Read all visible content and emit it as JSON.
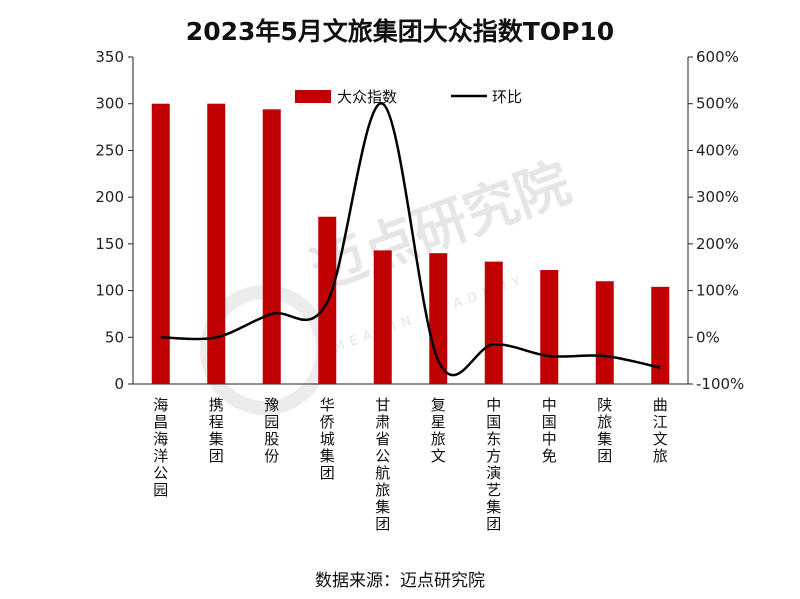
{
  "watermark": {
    "text": "迈点研究院",
    "subtext": "MEADIN ACADEMY"
  },
  "source": "数据来源：迈点研究院",
  "colors": {
    "bar": "#c00000",
    "line": "#000000",
    "axis": "#222222"
  },
  "chart_data": {
    "type": "bar",
    "title": "2023年5月文旅集团大众指数TOP10",
    "categories": [
      "海昌海洋公园",
      "携程集团",
      "豫园股份",
      "华侨城集团",
      "甘肃省公航旅集团",
      "复星旅文",
      "中国东方演艺集团",
      "中国中免",
      "陕旅集团",
      "曲江文旅"
    ],
    "series": [
      {
        "name": "大众指数",
        "type": "bar",
        "axis": "left",
        "values": [
          300,
          300,
          294,
          179,
          143,
          140,
          131,
          122,
          110,
          104
        ]
      },
      {
        "name": "环比",
        "type": "line",
        "axis": "right",
        "unit": "%",
        "values": [
          0,
          0,
          50,
          75,
          500,
          -50,
          -15,
          -40,
          -40,
          -65
        ]
      }
    ],
    "y_left": {
      "min": 0,
      "max": 350,
      "ticks": [
        "0",
        "50",
        "100",
        "150",
        "200",
        "250",
        "300",
        "350"
      ]
    },
    "y_right": {
      "min": -100,
      "max": 600,
      "ticks": [
        "-100%",
        "0%",
        "100%",
        "200%",
        "300%",
        "400%",
        "500%",
        "600%"
      ]
    },
    "legend_position": "top-center",
    "grid": false
  }
}
